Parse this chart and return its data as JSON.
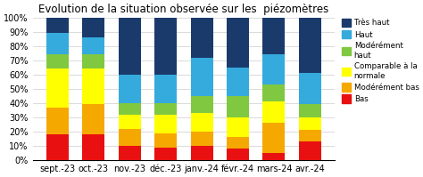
{
  "title": "Evolution de la situation observée sur les  piézomètres",
  "categories": [
    "sept.-23",
    "oct.-23",
    "nov.-23",
    "déc.-23",
    "janv.-24",
    "févr.-24",
    "mars-24",
    "avr.-24"
  ],
  "layers": [
    "Bas",
    "Modérément bas",
    "Comparable à la normale",
    "Modérément haut",
    "Haut",
    "Très haut"
  ],
  "colors": [
    "#e81010",
    "#f5a800",
    "#ffff00",
    "#80c840",
    "#35aadc",
    "#1a3a6b"
  ],
  "legend_labels": [
    "Très haut",
    "Haut",
    "Modérément\nhaut",
    "Comparable à la\nnormale",
    "Modérément bas",
    "Bas"
  ],
  "data": {
    "Bas": [
      18,
      18,
      10,
      9,
      10,
      8,
      5,
      13
    ],
    "Modérément bas": [
      19,
      21,
      12,
      10,
      10,
      8,
      21,
      8
    ],
    "Comparable à la normale": [
      27,
      25,
      10,
      13,
      13,
      14,
      15,
      9
    ],
    "Modérément haut": [
      10,
      10,
      8,
      8,
      12,
      15,
      12,
      9
    ],
    "Haut": [
      15,
      12,
      20,
      20,
      27,
      20,
      21,
      22
    ],
    "Très haut": [
      11,
      14,
      40,
      40,
      28,
      35,
      26,
      39
    ]
  },
  "background_color": "#ffffff",
  "ylim": [
    0,
    100
  ],
  "title_fontsize": 8.5,
  "tick_fontsize": 7
}
